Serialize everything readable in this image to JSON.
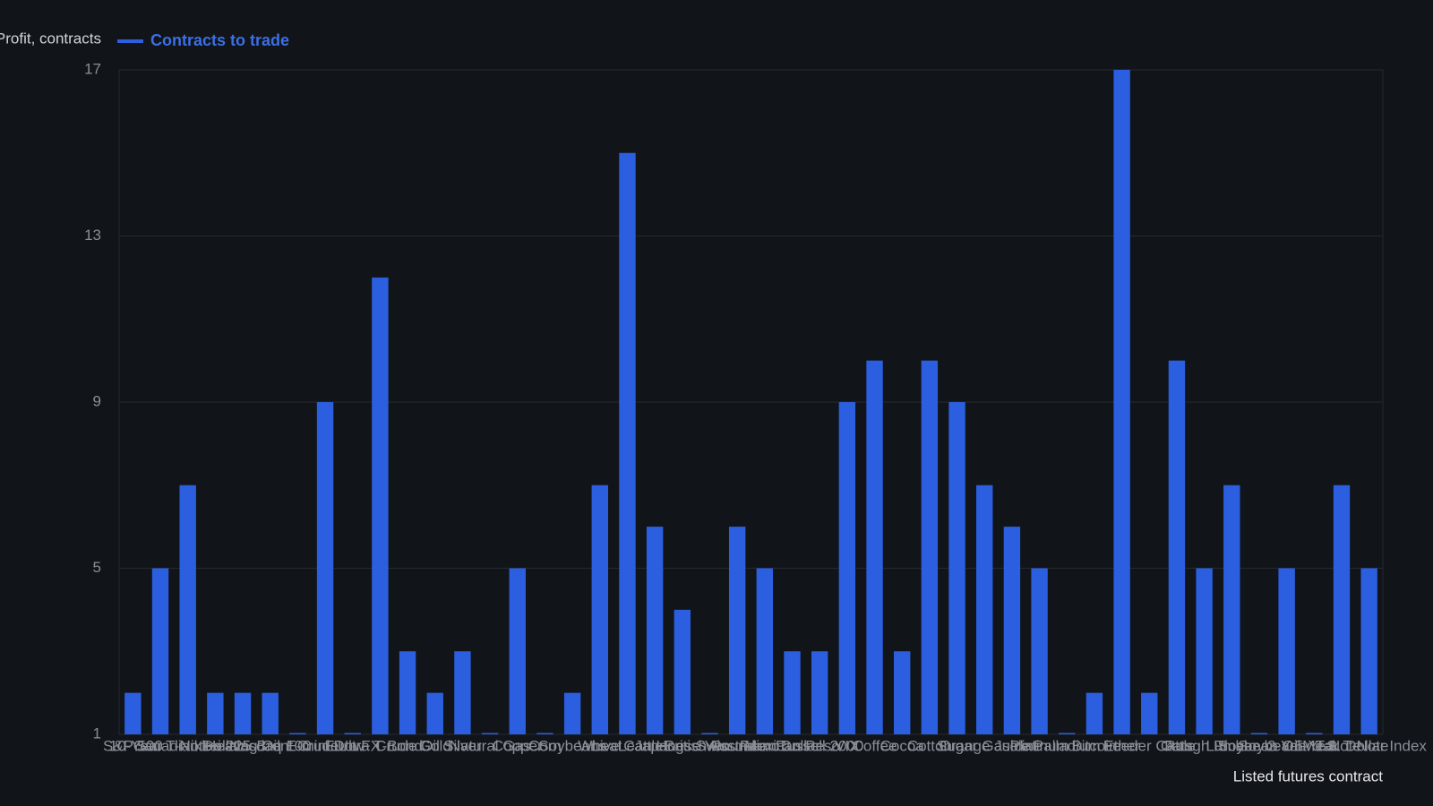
{
  "chart_data": {
    "type": "bar",
    "legend_hidden_entry": "Profit, contracts",
    "x_label": "Listed futures contract",
    "categories": [
      "S&P 500",
      "10-Year T-Note",
      "Canadian Dollar",
      "Nikkei 225",
      "Heating Oil",
      "Nasdaq 100",
      "Brent Crude",
      "E-mini Dow",
      "Euro FX",
      "Ultra T-Bond",
      "Crude Oil",
      "Gold",
      "Silver",
      "Natural Gas",
      "Copper",
      "Corn",
      "Soybeans",
      "Wheat",
      "Live Cattle",
      "Lean Hogs",
      "Japanese Yen",
      "British Pound",
      "Swiss Franc",
      "Australian Dollar",
      "Mexican Peso",
      "Russell 2000",
      "VIX",
      "Coffee",
      "Cocoa",
      "Cotton",
      "Sugar",
      "Orange Juice",
      "Gasoline",
      "Platinum",
      "Palladium",
      "Bitcoin",
      "Ether",
      "Feeder Cattle",
      "Oats",
      "Rough Rice",
      "Lumber",
      "Soybean Oil",
      "Soybean Meal",
      "2-Year T-Note",
      "5-Year T-Note",
      "U.S. Dollar Index"
    ],
    "series": [
      {
        "name": "Contracts to trade",
        "color": "#2b5fdf",
        "values": [
          2,
          5,
          7,
          2,
          2,
          2,
          1,
          9,
          1,
          12,
          3,
          2,
          3,
          1,
          5,
          1,
          2,
          7,
          15,
          6,
          4,
          1,
          6,
          5,
          3,
          3,
          9,
          10,
          3,
          10,
          9,
          7,
          6,
          5,
          1,
          2,
          17,
          2,
          10,
          5,
          7,
          1,
          5,
          1,
          7,
          5
        ]
      }
    ],
    "ylim": [
      1,
      17
    ],
    "yticks": [
      1,
      5,
      9,
      13,
      17
    ],
    "grid": true
  }
}
